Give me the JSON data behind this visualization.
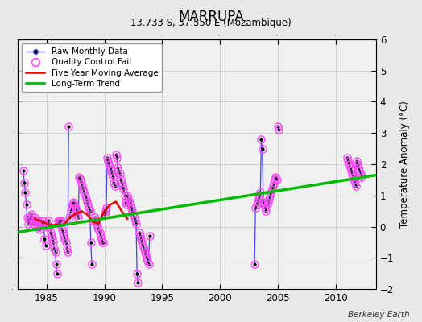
{
  "title": "MARRUPA",
  "subtitle": "13.733 S, 37.550 E (Mozambique)",
  "ylabel": "Temperature Anomaly (°C)",
  "credit": "Berkeley Earth",
  "xlim": [
    1982.5,
    2013.5
  ],
  "ylim": [
    -2,
    6
  ],
  "yticks": [
    -2,
    -1,
    0,
    1,
    2,
    3,
    4,
    5,
    6
  ],
  "xticks": [
    1985,
    1990,
    1995,
    2000,
    2005,
    2010
  ],
  "bg_color": "#e8e8e8",
  "plot_bg_color": "#f0f0f0",
  "raw_line_color": "#4444dd",
  "raw_dot_color": "#000000",
  "qc_circle_color": "#ff44ff",
  "moving_avg_color": "#dd0000",
  "trend_color": "#00bb00",
  "segments": [
    {
      "x": [
        1983.0,
        1983.083,
        1983.167,
        1983.25,
        1983.333,
        1983.417,
        1983.5,
        1983.583,
        1983.667,
        1983.75,
        1983.833,
        1983.917
      ],
      "y": [
        1.8,
        1.4,
        1.1,
        0.7,
        0.3,
        0.1,
        0.3,
        0.2,
        0.4,
        0.3,
        0.1,
        0.1
      ]
    },
    {
      "x": [
        1984.0,
        1984.083,
        1984.167,
        1984.25,
        1984.333,
        1984.417,
        1984.5,
        1984.583,
        1984.667,
        1984.75,
        1984.833,
        1984.917
      ],
      "y": [
        0.3,
        0.2,
        0.1,
        0.2,
        0.0,
        -0.1,
        0.1,
        0.1,
        0.2,
        0.1,
        -0.4,
        -0.6
      ]
    },
    {
      "x": [
        1985.0,
        1985.083,
        1985.167,
        1985.25,
        1985.333,
        1985.417,
        1985.5,
        1985.583,
        1985.667,
        1985.75,
        1985.833,
        1985.917
      ],
      "y": [
        0.1,
        0.0,
        0.2,
        0.0,
        -0.2,
        -0.3,
        -0.4,
        -0.5,
        -0.7,
        -0.8,
        -1.2,
        -1.5
      ]
    },
    {
      "x": [
        1986.0,
        1986.083,
        1986.167,
        1986.25,
        1986.333,
        1986.417,
        1986.5,
        1986.583,
        1986.667,
        1986.75,
        1986.833,
        1986.917
      ],
      "y": [
        0.2,
        0.1,
        0.2,
        0.2,
        -0.1,
        -0.2,
        -0.3,
        -0.4,
        -0.5,
        -0.7,
        -0.8,
        3.2
      ]
    },
    {
      "x": [
        1987.0,
        1987.083,
        1987.167,
        1987.25,
        1987.333,
        1987.417,
        1987.5,
        1987.583,
        1987.667,
        1987.75,
        1987.833,
        1987.917
      ],
      "y": [
        0.3,
        0.5,
        0.6,
        0.7,
        0.8,
        0.7,
        0.6,
        0.5,
        0.4,
        0.3,
        1.6,
        1.5
      ]
    },
    {
      "x": [
        1988.0,
        1988.083,
        1988.167,
        1988.25,
        1988.333,
        1988.417,
        1988.5,
        1988.583,
        1988.667,
        1988.75,
        1988.833,
        1988.917
      ],
      "y": [
        1.4,
        1.3,
        1.2,
        1.1,
        1.0,
        0.9,
        0.8,
        0.7,
        0.6,
        0.5,
        -0.5,
        -1.2
      ]
    },
    {
      "x": [
        1989.0,
        1989.083,
        1989.167,
        1989.25,
        1989.333,
        1989.417,
        1989.5,
        1989.583,
        1989.667,
        1989.75,
        1989.833,
        1989.917
      ],
      "y": [
        0.2,
        0.2,
        0.3,
        0.2,
        0.1,
        0.0,
        -0.1,
        -0.2,
        -0.3,
        -0.4,
        -0.5,
        -0.5
      ]
    },
    {
      "x": [
        1990.0,
        1990.083,
        1990.167,
        1990.25,
        1990.333,
        1990.417,
        1990.5,
        1990.583,
        1990.667,
        1990.75,
        1990.833,
        1990.917
      ],
      "y": [
        0.4,
        0.5,
        0.6,
        2.2,
        2.1,
        2.0,
        1.9,
        1.8,
        1.7,
        1.6,
        1.4,
        1.3
      ]
    },
    {
      "x": [
        1991.0,
        1991.083,
        1991.167,
        1991.25,
        1991.333,
        1991.417,
        1991.5,
        1991.583,
        1991.667,
        1991.75,
        1991.833,
        1991.917
      ],
      "y": [
        2.3,
        2.2,
        1.9,
        1.8,
        1.7,
        1.5,
        1.4,
        1.3,
        1.2,
        1.0,
        0.8,
        0.7
      ]
    },
    {
      "x": [
        1992.0,
        1992.083,
        1992.167,
        1992.25,
        1992.333,
        1992.417,
        1992.5,
        1992.583,
        1992.667,
        1992.75,
        1992.833,
        1992.917
      ],
      "y": [
        1.0,
        0.9,
        0.8,
        0.7,
        0.6,
        0.5,
        0.4,
        0.3,
        0.2,
        0.1,
        -1.5,
        -1.8
      ]
    },
    {
      "x": [
        1993.0,
        1993.083,
        1993.167,
        1993.25,
        1993.333,
        1993.417,
        1993.5,
        1993.583,
        1993.667,
        1993.75,
        1993.833,
        1993.917
      ],
      "y": [
        -0.2,
        -0.3,
        -0.4,
        -0.5,
        -0.6,
        -0.7,
        -0.8,
        -0.9,
        -1.0,
        -1.1,
        -1.2,
        -0.3
      ]
    },
    {
      "x": [
        2003.0,
        2003.083,
        2003.167,
        2003.25,
        2003.333,
        2003.417,
        2003.5,
        2003.583,
        2003.667,
        2003.75,
        2003.833,
        2003.917
      ],
      "y": [
        -1.2,
        0.6,
        0.7,
        0.8,
        0.9,
        1.0,
        1.1,
        2.8,
        2.5,
        0.8,
        0.7,
        0.6
      ]
    },
    {
      "x": [
        2004.0,
        2004.083,
        2004.167,
        2004.25,
        2004.333,
        2004.417,
        2004.5,
        2004.583,
        2004.667,
        2004.75,
        2004.833,
        2004.917
      ],
      "y": [
        0.5,
        0.7,
        0.8,
        0.9,
        1.0,
        1.1,
        1.2,
        1.3,
        1.4,
        1.5,
        1.6,
        1.5
      ]
    },
    {
      "x": [
        2005.0,
        2005.083
      ],
      "y": [
        3.2,
        3.1
      ]
    },
    {
      "x": [
        2011.0,
        2011.083,
        2011.167,
        2011.25,
        2011.333,
        2011.417,
        2011.5,
        2011.583,
        2011.667,
        2011.75,
        2011.833,
        2011.917
      ],
      "y": [
        2.2,
        2.1,
        2.0,
        1.9,
        1.8,
        1.7,
        1.6,
        1.5,
        1.4,
        1.3,
        2.1,
        2.0
      ]
    },
    {
      "x": [
        2012.0,
        2012.083,
        2012.167,
        2012.25
      ],
      "y": [
        1.9,
        1.8,
        1.7,
        1.6
      ]
    }
  ],
  "moving_avg_x": [
    1984.0,
    1984.5,
    1985.0,
    1985.5,
    1986.0,
    1986.5,
    1987.0,
    1987.5,
    1988.0,
    1988.5,
    1989.0,
    1989.5,
    1990.0,
    1990.5,
    1991.0,
    1991.5,
    1992.0
  ],
  "moving_avg_y": [
    0.25,
    0.18,
    0.1,
    0.05,
    0.08,
    0.05,
    0.3,
    0.4,
    0.5,
    0.4,
    0.15,
    0.1,
    0.5,
    0.7,
    0.8,
    0.5,
    0.25
  ],
  "trend_x": [
    1982.5,
    2013.5
  ],
  "trend_y": [
    -0.18,
    1.65
  ]
}
